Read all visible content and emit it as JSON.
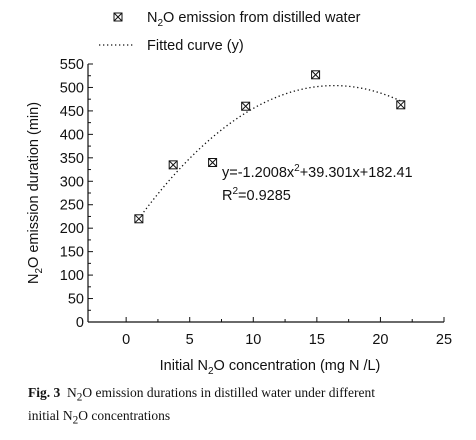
{
  "chart_data": {
    "type": "scatter",
    "xlabel": {
      "pre": "Initial N",
      "sub": "2",
      "post": "O concentration (mg N /L)"
    },
    "ylabel": {
      "pre": "N",
      "sub": "2",
      "post": "O emission duration (min)"
    },
    "xlim": [
      -3,
      25
    ],
    "ylim": [
      0,
      550
    ],
    "x_ticks": [
      0,
      5,
      10,
      15,
      20,
      25
    ],
    "y_ticks": [
      0,
      50,
      100,
      150,
      200,
      250,
      300,
      350,
      400,
      450,
      500,
      550
    ],
    "grid": false,
    "legend_position": "top",
    "series": [
      {
        "name": {
          "pre": "N",
          "sub": "2",
          "post": "O emission from distilled water"
        },
        "marker": "square-x",
        "x": [
          1.0,
          3.7,
          6.8,
          9.4,
          14.9,
          21.6
        ],
        "y": [
          220,
          335,
          340,
          460,
          527,
          463
        ]
      },
      {
        "name": "Fitted curve (y)",
        "style": "dotted",
        "coefficients": [
          -1.2008,
          39.301,
          182.41
        ],
        "x_range": [
          1.0,
          21.6
        ]
      }
    ],
    "annotations": {
      "equation": {
        "pre": "y=-1.2008x",
        "sup": "2",
        "post": "+39.301x+182.41"
      },
      "r_squared": {
        "pre": "R",
        "sup": "2",
        "post": "=0.9285"
      }
    }
  },
  "caption": {
    "label": "Fig. 3",
    "line1_pre": "N",
    "line1_sub": "2",
    "line1_post": "O emission durations in distilled water under different",
    "line2_pre": "initial N",
    "line2_sub": "2",
    "line2_post": "O concentrations"
  }
}
